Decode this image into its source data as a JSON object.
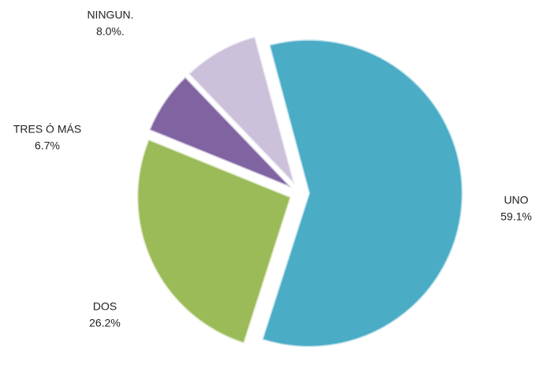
{
  "chart_data": {
    "type": "pie",
    "categories": [
      "UNO",
      "DOS",
      "TRES Ó MÁS",
      "NINGUN."
    ],
    "values": [
      59.1,
      26.2,
      6.7,
      8.0
    ],
    "value_labels": [
      "59.1%",
      "26.2%",
      "6.7%",
      "8.0%."
    ],
    "colors": [
      "#4bacc6",
      "#9bbb59",
      "#8064a2",
      "#ccc1da"
    ]
  }
}
